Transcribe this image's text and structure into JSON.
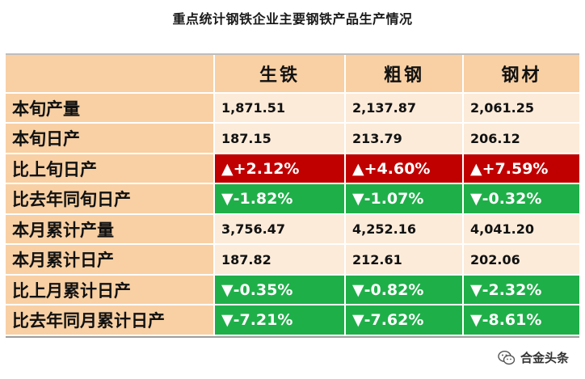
{
  "title": "重点统计钢铁企业主要钢铁产品生产情况",
  "columns": [
    "生铁",
    "粗钢",
    "钢材"
  ],
  "rows": [
    {
      "label": "本旬产量",
      "type": "value",
      "values": [
        "1,871.51",
        "2,137.87",
        "2,061.25"
      ]
    },
    {
      "label": "本旬日产",
      "type": "value",
      "values": [
        "187.15",
        "213.79",
        "206.12"
      ]
    },
    {
      "label": "比上旬日产",
      "type": "up",
      "values": [
        "▲+2.12%",
        "▲+4.60%",
        "▲+7.59%"
      ]
    },
    {
      "label": "比去年同旬日产",
      "type": "down",
      "values": [
        "▼-1.82%",
        "▼-1.07%",
        "▼-0.32%"
      ]
    },
    {
      "label": "本月累计产量",
      "type": "value",
      "values": [
        "3,756.47",
        "4,252.16",
        "4,041.20"
      ]
    },
    {
      "label": "本月累计日产",
      "type": "value",
      "values": [
        "187.82",
        "212.61",
        "202.06"
      ]
    },
    {
      "label": "比上月累计日产",
      "type": "down",
      "values": [
        "▼-0.35%",
        "▼-0.82%",
        "▼-2.32%"
      ]
    },
    {
      "label": "比去年同月累计日产",
      "type": "down",
      "values": [
        "▼-7.21%",
        "▼-7.62%",
        "▼-8.61%"
      ]
    }
  ],
  "colors": {
    "header_bg": "#f8d0a4",
    "value_bg": "#fcebd9",
    "up_bg": "#c00000",
    "down_bg": "#1faf49"
  },
  "watermark": {
    "text": "合金头条",
    "icon": "wechat-icon"
  }
}
